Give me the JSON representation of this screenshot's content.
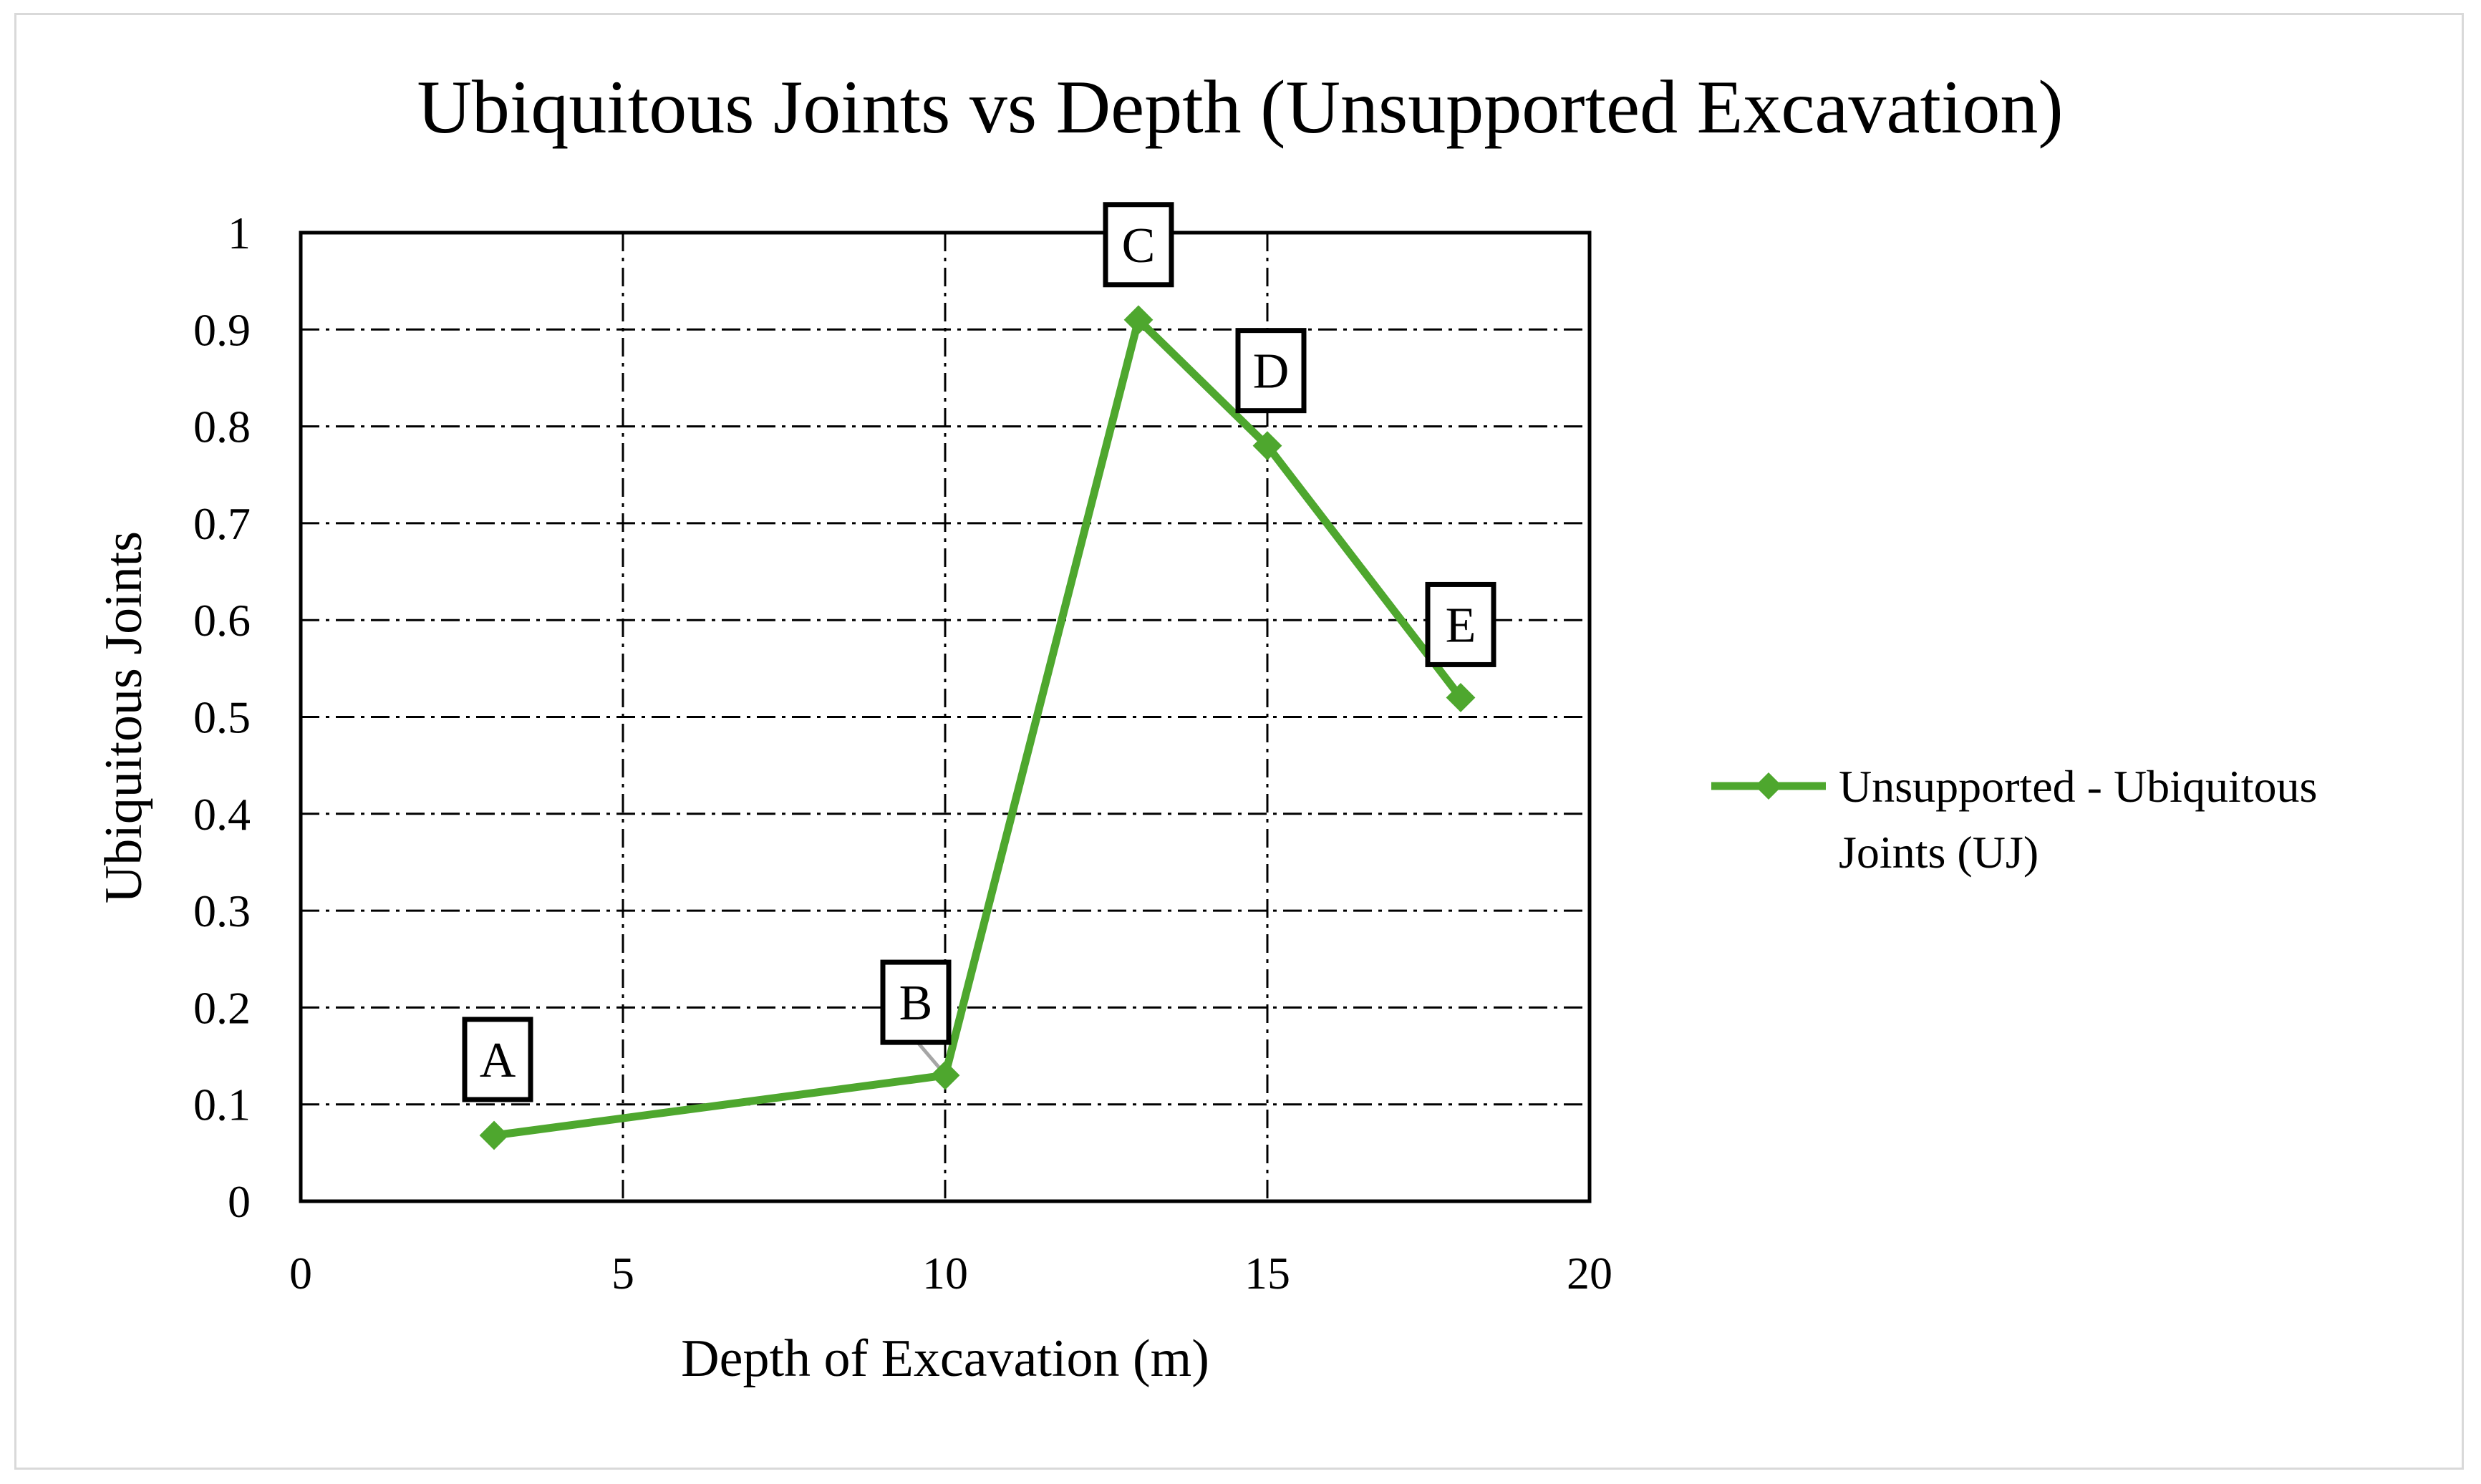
{
  "chart_data": {
    "type": "line",
    "title": "Ubiquitous Joints vs Depth (Unsupported Excavation)",
    "xlabel": "Depth of Excavation (m)",
    "ylabel": "Ubiquitous Joints",
    "xlim": [
      0,
      20
    ],
    "ylim": [
      0,
      1
    ],
    "x_ticks": [
      "0",
      "5",
      "10",
      "15",
      "20"
    ],
    "y_ticks": [
      "0",
      "0.1",
      "0.2",
      "0.3",
      "0.4",
      "0.5",
      "0.6",
      "0.7",
      "0.8",
      "0.9",
      "1"
    ],
    "grid": true,
    "legend_position": "right",
    "series": [
      {
        "name": "Unsupported - Ubiquitous Joints (UJ)",
        "color": "#4ea72e",
        "marker": "diamond",
        "x": [
          3,
          10,
          13,
          15,
          18
        ],
        "y": [
          0.068,
          0.13,
          0.91,
          0.78,
          0.52
        ]
      }
    ],
    "point_labels": [
      "A",
      "B",
      "C",
      "D",
      "E"
    ]
  }
}
